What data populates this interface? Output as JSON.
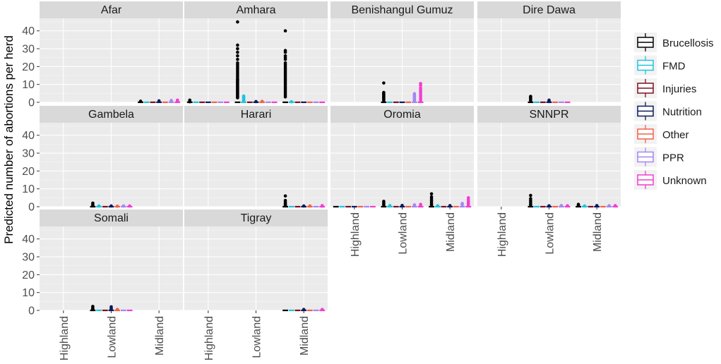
{
  "chart_data": {
    "type": "boxplot",
    "ylabel": "Predicted number of abortions per herd",
    "xlabel": "",
    "ylim": [
      0,
      47
    ],
    "yticks": [
      0,
      10,
      20,
      30,
      40
    ],
    "categories": [
      "Highland",
      "Lowland",
      "Midland"
    ],
    "legend": {
      "position": "right",
      "entries": [
        {
          "name": "Brucellosis",
          "color": "#000000"
        },
        {
          "name": "FMD",
          "color": "#1EC4DE"
        },
        {
          "name": "Injuries",
          "color": "#7A1020"
        },
        {
          "name": "Nutrition",
          "color": "#0A1A5C"
        },
        {
          "name": "Other",
          "color": "#F4604C"
        },
        {
          "name": "PPR",
          "color": "#A586F2"
        },
        {
          "name": "Unknown",
          "color": "#F23ED0"
        }
      ]
    },
    "panels": [
      {
        "title": "Afar",
        "groups": [
          {
            "category": "Midland",
            "outliers": {
              "Brucellosis": [
                0.6
              ],
              "Nutrition": [
                0.8
              ],
              "PPR": [
                0.5,
                1.0
              ],
              "Unknown": [
                0.6,
                1.2
              ]
            }
          }
        ]
      },
      {
        "title": "Amhara",
        "groups": [
          {
            "category": "Highland",
            "outliers": {
              "Brucellosis": [
                0.3,
                0.7,
                1.2
              ]
            }
          },
          {
            "category": "Lowland",
            "outliers": {
              "Brucellosis": [
                45,
                32,
                30,
                28,
                26,
                24,
                22,
                21,
                20,
                19,
                18,
                17,
                16,
                15,
                14,
                13,
                12.5,
                12,
                11.5,
                11,
                10.5,
                10,
                9.5,
                9,
                8.5,
                8,
                7.5,
                7,
                6.5,
                6,
                5.5,
                5,
                4.5,
                4,
                3.5,
                3,
                2.5
              ],
              "FMD": [
                3.5,
                3,
                2.5,
                2,
                1.5,
                1,
                0.5
              ],
              "Nutrition": [
                0.4
              ],
              "Other": [
                0.5
              ]
            }
          },
          {
            "category": "Midland",
            "outliers": {
              "Brucellosis": [
                40,
                29,
                28,
                26,
                25,
                24,
                22,
                21,
                20,
                19,
                18,
                17,
                16,
                15,
                14,
                13,
                12,
                11,
                10,
                9,
                8,
                7,
                6,
                5,
                4,
                3
              ],
              "FMD": [
                0.3
              ]
            }
          }
        ]
      },
      {
        "title": "Benishangul Gumuz",
        "groups": [
          {
            "category": "Lowland",
            "outliers": {
              "Brucellosis": [
                10.8,
                5.5,
                5,
                4.5,
                4,
                3.5,
                3,
                2.5,
                2,
                1.5,
                1
              ],
              "PPR": [
                4.8,
                4.3,
                3.8,
                3.3,
                2.8,
                2.3,
                1.8,
                1.3,
                0.8
              ],
              "Unknown": [
                10.5,
                9.5,
                8,
                7,
                6,
                5,
                4,
                3,
                2,
                1
              ]
            }
          }
        ]
      },
      {
        "title": "Dire Dawa",
        "groups": [
          {
            "category": "Lowland",
            "outliers": {
              "Brucellosis": [
                3.3,
                2.8,
                2.2,
                1.5,
                1.0
              ],
              "Nutrition": [
                1.2,
                0.8,
                0.5
              ]
            }
          }
        ]
      },
      {
        "title": "Gambela",
        "groups": [
          {
            "category": "Lowland",
            "outliers": {
              "Brucellosis": [
                2.0,
                1.3,
                0.8
              ],
              "FMD": [
                0.4
              ],
              "Nutrition": [
                0.4
              ],
              "Other": [
                0.3
              ],
              "PPR": [
                0.4
              ],
              "Unknown": [
                0.4
              ]
            }
          }
        ]
      },
      {
        "title": "Harari",
        "groups": [
          {
            "category": "Midland",
            "outliers": {
              "Brucellosis": [
                6.0,
                3.5,
                2.5,
                1.8,
                1.2,
                0.8
              ],
              "Nutrition": [
                0.4
              ],
              "Other": [
                0.4
              ],
              "Unknown": [
                0.6,
                0.3
              ]
            }
          }
        ]
      },
      {
        "title": "Oromia",
        "groups": [
          {
            "category": "Highland",
            "outliers": {}
          },
          {
            "category": "Lowland",
            "outliers": {
              "Brucellosis": [
                3.0,
                2.2,
                1.5,
                1.0
              ],
              "FMD": [
                0.6
              ],
              "Nutrition": [
                0.7
              ],
              "PPR": [
                1.0
              ],
              "Unknown": [
                1.3,
                0.7
              ]
            }
          },
          {
            "category": "Midland",
            "outliers": {
              "Brucellosis": [
                7.2,
                5.5,
                4.5,
                3.5,
                2.5,
                1.5,
                1.0
              ],
              "FMD": [
                0.5
              ],
              "Nutrition": [
                0.6
              ],
              "PPR": [
                1.8,
                1.2
              ],
              "Unknown": [
                5.0,
                4.0,
                3.0,
                2.3,
                1.6,
                1.0
              ]
            }
          }
        ]
      },
      {
        "title": "SNNPR",
        "groups": [
          {
            "category": "Lowland",
            "outliers": {
              "Brucellosis": [
                6.3,
                4.5,
                3.5,
                2.5,
                1.5,
                1.0
              ],
              "Nutrition": [
                0.5
              ],
              "PPR": [
                0.6
              ],
              "Unknown": [
                0.5
              ]
            }
          },
          {
            "category": "Midland",
            "outliers": {
              "Brucellosis": [
                1.3,
                0.8
              ],
              "FMD": [
                0.4
              ],
              "Nutrition": [
                0.6
              ],
              "PPR": [
                0.5
              ],
              "Unknown": [
                0.6
              ]
            }
          }
        ]
      },
      {
        "title": "Somali",
        "groups": [
          {
            "category": "Lowland",
            "outliers": {
              "Brucellosis": [
                2.2,
                1.5,
                1.0,
                0.6
              ],
              "Nutrition": [
                2.0,
                1.4,
                0.9,
                0.5
              ],
              "Other": [
                0.5
              ]
            }
          }
        ]
      },
      {
        "title": "Tigray",
        "groups": [
          {
            "category": "Midland",
            "outliers": {
              "Nutrition": [
                0.5
              ],
              "Unknown": [
                0.5
              ]
            }
          }
        ]
      }
    ]
  }
}
